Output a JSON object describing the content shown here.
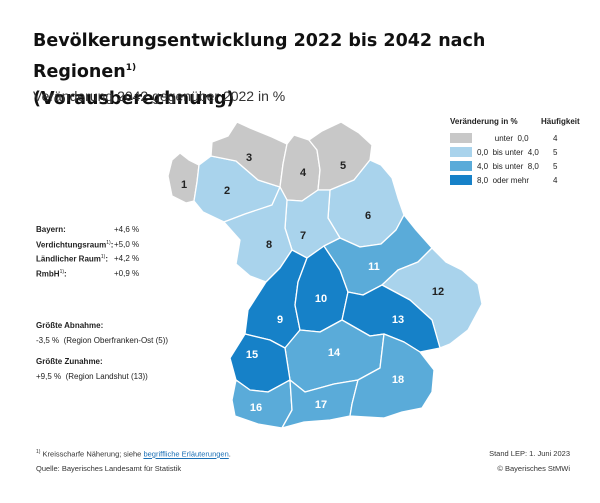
{
  "title_line1": "Bevölkerungsentwicklung 2022 bis 2042 nach Regionen",
  "title_sup": "1)",
  "title_line2": "(Vorausberechnung)",
  "subtitle": "Veränderung 2042 gegenüber 2022 in %",
  "legend": {
    "header_change": "Veränderung in %",
    "header_count": "Häufigkeit",
    "classes": [
      {
        "range": "        unter  0,0",
        "count": "4",
        "color": "#c8c8c8"
      },
      {
        "range": "0,0  bis unter  4,0",
        "count": "5",
        "color": "#a9d3ec"
      },
      {
        "range": "4,0  bis unter  8,0",
        "count": "5",
        "color": "#5aabd9"
      },
      {
        "range": "8,0  oder mehr",
        "count": "4",
        "color": "#1681c8"
      }
    ]
  },
  "stats": [
    {
      "label": "Bayern:",
      "sup": "",
      "value": "+4,6 %"
    },
    {
      "label": "Verdichtungsraum",
      "sup": "1)",
      "value": "+5,0 %"
    },
    {
      "label": "Ländlicher Raum",
      "sup": "1)",
      "value": "+4,2 %"
    },
    {
      "label": "RmbH",
      "sup": "1)",
      "value": "+0,9 %"
    }
  ],
  "decline": {
    "heading": "Größte Abnahme:",
    "text": "-3,5 %  (Region Oberfranken-Ost (5))"
  },
  "increase": {
    "heading": "Größte Zunahme:",
    "text": "+9,5 %  (Region Landshut (13))"
  },
  "footnote": {
    "mark": "1)",
    "text": "Kreisscharfe Näherung; siehe ",
    "link": "begriffliche Erläuterungen",
    "end": "."
  },
  "source": "Quelle: Bayerisches Landesamt für Statistik",
  "stand": "Stand LEP: 1. Juni 2023",
  "copyright": "© Bayerisches StMWi",
  "regions": [
    {
      "id": 1,
      "label": "1",
      "class": 0
    },
    {
      "id": 2,
      "label": "2",
      "class": 1
    },
    {
      "id": 3,
      "label": "3",
      "class": 0
    },
    {
      "id": 4,
      "label": "4",
      "class": 0
    },
    {
      "id": 5,
      "label": "5",
      "class": 0
    },
    {
      "id": 6,
      "label": "6",
      "class": 1
    },
    {
      "id": 7,
      "label": "7",
      "class": 1
    },
    {
      "id": 8,
      "label": "8",
      "class": 1
    },
    {
      "id": 9,
      "label": "9",
      "class": 3
    },
    {
      "id": 10,
      "label": "10",
      "class": 3
    },
    {
      "id": 11,
      "label": "11",
      "class": 2
    },
    {
      "id": 12,
      "label": "12",
      "class": 1
    },
    {
      "id": 13,
      "label": "13",
      "class": 3
    },
    {
      "id": 14,
      "label": "14",
      "class": 2
    },
    {
      "id": 15,
      "label": "15",
      "class": 3
    },
    {
      "id": 16,
      "label": "16",
      "class": 2
    },
    {
      "id": 17,
      "label": "17",
      "class": 2
    },
    {
      "id": 18,
      "label": "18",
      "class": 2
    }
  ]
}
